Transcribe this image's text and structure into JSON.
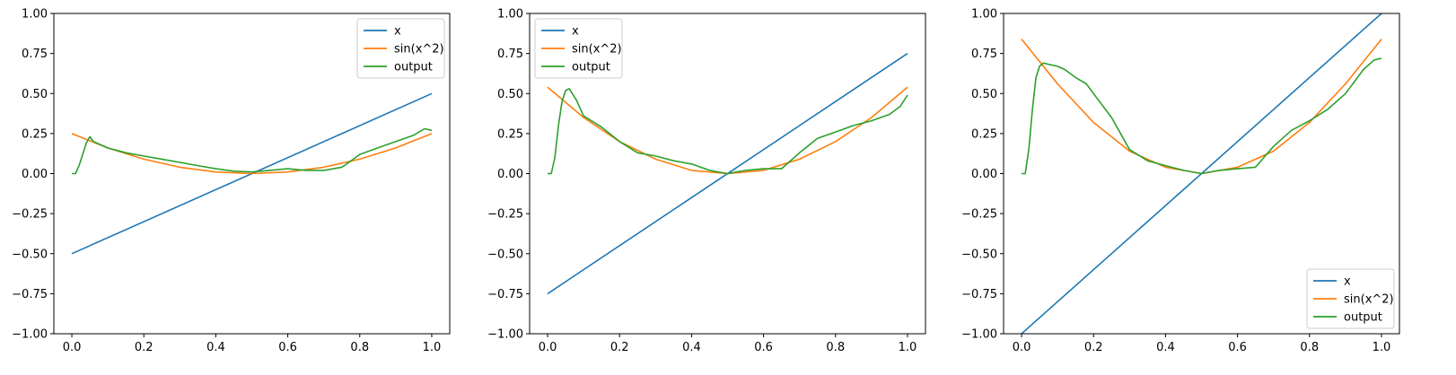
{
  "colors": {
    "x": "#1f77b4",
    "sin": "#ff7f0e",
    "output": "#2ca02c"
  },
  "chart_data": [
    {
      "type": "line",
      "xlim": [
        -0.05,
        1.05
      ],
      "ylim": [
        -1.0,
        1.0
      ],
      "xticks": [
        0.0,
        0.2,
        0.4,
        0.6,
        0.8,
        1.0
      ],
      "xtick_labels": [
        "0.0",
        "0.2",
        "0.4",
        "0.6",
        "0.8",
        "1.0"
      ],
      "yticks": [
        -1.0,
        -0.75,
        -0.5,
        -0.25,
        0.0,
        0.25,
        0.5,
        0.75,
        1.0
      ],
      "ytick_labels": [
        "−1.00",
        "−0.75",
        "−0.50",
        "−0.25",
        "0.00",
        "0.25",
        "0.50",
        "0.75",
        "1.00"
      ],
      "legend_position": "top-right",
      "series": [
        {
          "name": "x",
          "color_key": "x",
          "x": [
            0.0,
            1.0
          ],
          "y": [
            -0.5,
            0.5
          ]
        },
        {
          "name": "sin(x^2)",
          "color_key": "sin",
          "x": [
            0.0,
            0.1,
            0.2,
            0.3,
            0.4,
            0.5,
            0.6,
            0.7,
            0.8,
            0.9,
            1.0
          ],
          "y": [
            0.25,
            0.16,
            0.09,
            0.04,
            0.01,
            0.0,
            0.01,
            0.04,
            0.09,
            0.16,
            0.25
          ]
        },
        {
          "name": "output",
          "color_key": "output",
          "x": [
            0.0,
            0.01,
            0.02,
            0.03,
            0.04,
            0.05,
            0.06,
            0.08,
            0.1,
            0.15,
            0.2,
            0.25,
            0.3,
            0.35,
            0.4,
            0.45,
            0.5,
            0.55,
            0.6,
            0.65,
            0.7,
            0.75,
            0.77,
            0.8,
            0.85,
            0.9,
            0.95,
            0.98,
            1.0
          ],
          "y": [
            0.0,
            0.0,
            0.05,
            0.12,
            0.19,
            0.23,
            0.2,
            0.18,
            0.16,
            0.13,
            0.11,
            0.09,
            0.07,
            0.05,
            0.03,
            0.015,
            0.01,
            0.02,
            0.03,
            0.02,
            0.02,
            0.04,
            0.07,
            0.12,
            0.16,
            0.2,
            0.24,
            0.28,
            0.27
          ]
        }
      ]
    },
    {
      "type": "line",
      "xlim": [
        -0.05,
        1.05
      ],
      "ylim": [
        -1.0,
        1.0
      ],
      "xticks": [
        0.0,
        0.2,
        0.4,
        0.6,
        0.8,
        1.0
      ],
      "xtick_labels": [
        "0.0",
        "0.2",
        "0.4",
        "0.6",
        "0.8",
        "1.0"
      ],
      "yticks": [
        -1.0,
        -0.75,
        -0.5,
        -0.25,
        0.0,
        0.25,
        0.5,
        0.75,
        1.0
      ],
      "ytick_labels": [
        "−1.00",
        "−0.75",
        "−0.50",
        "−0.25",
        "0.00",
        "0.25",
        "0.50",
        "0.75",
        "1.00"
      ],
      "legend_position": "top-left",
      "series": [
        {
          "name": "x",
          "color_key": "x",
          "x": [
            0.0,
            1.0
          ],
          "y": [
            -0.75,
            0.75
          ]
        },
        {
          "name": "sin(x^2)",
          "color_key": "sin",
          "x": [
            0.0,
            0.1,
            0.2,
            0.3,
            0.4,
            0.5,
            0.6,
            0.7,
            0.8,
            0.9,
            1.0
          ],
          "y": [
            0.54,
            0.35,
            0.2,
            0.09,
            0.02,
            0.0,
            0.02,
            0.09,
            0.2,
            0.35,
            0.54
          ]
        },
        {
          "name": "output",
          "color_key": "output",
          "x": [
            0.0,
            0.01,
            0.02,
            0.03,
            0.04,
            0.05,
            0.06,
            0.08,
            0.1,
            0.15,
            0.2,
            0.25,
            0.3,
            0.35,
            0.4,
            0.45,
            0.5,
            0.55,
            0.6,
            0.65,
            0.7,
            0.75,
            0.8,
            0.85,
            0.9,
            0.95,
            0.98,
            1.0
          ],
          "y": [
            0.0,
            0.0,
            0.1,
            0.3,
            0.45,
            0.52,
            0.53,
            0.46,
            0.36,
            0.29,
            0.2,
            0.13,
            0.11,
            0.08,
            0.06,
            0.02,
            0.0,
            0.02,
            0.03,
            0.03,
            0.13,
            0.22,
            0.26,
            0.3,
            0.33,
            0.37,
            0.42,
            0.49
          ]
        }
      ]
    },
    {
      "type": "line",
      "xlim": [
        -0.05,
        1.05
      ],
      "ylim": [
        -1.0,
        1.0
      ],
      "xticks": [
        0.0,
        0.2,
        0.4,
        0.6,
        0.8,
        1.0
      ],
      "xtick_labels": [
        "0.0",
        "0.2",
        "0.4",
        "0.6",
        "0.8",
        "1.0"
      ],
      "yticks": [
        -1.0,
        -0.75,
        -0.5,
        -0.25,
        0.0,
        0.25,
        0.5,
        0.75,
        1.0
      ],
      "ytick_labels": [
        "−1.00",
        "−0.75",
        "−0.50",
        "−0.25",
        "0.00",
        "0.25",
        "0.50",
        "0.75",
        "1.00"
      ],
      "legend_position": "bottom-right",
      "series": [
        {
          "name": "x",
          "color_key": "x",
          "x": [
            0.0,
            1.0
          ],
          "y": [
            -1.0,
            1.0
          ]
        },
        {
          "name": "sin(x^2)",
          "color_key": "sin",
          "x": [
            0.0,
            0.1,
            0.2,
            0.3,
            0.4,
            0.5,
            0.6,
            0.7,
            0.8,
            0.9,
            1.0
          ],
          "y": [
            0.84,
            0.56,
            0.32,
            0.14,
            0.04,
            0.0,
            0.04,
            0.14,
            0.32,
            0.56,
            0.84
          ]
        },
        {
          "name": "output",
          "color_key": "output",
          "x": [
            0.0,
            0.01,
            0.02,
            0.03,
            0.04,
            0.05,
            0.06,
            0.08,
            0.1,
            0.12,
            0.15,
            0.18,
            0.2,
            0.25,
            0.3,
            0.35,
            0.4,
            0.45,
            0.5,
            0.55,
            0.6,
            0.65,
            0.7,
            0.75,
            0.8,
            0.85,
            0.9,
            0.95,
            0.98,
            1.0
          ],
          "y": [
            0.0,
            0.0,
            0.15,
            0.4,
            0.6,
            0.67,
            0.69,
            0.68,
            0.67,
            0.65,
            0.6,
            0.56,
            0.5,
            0.35,
            0.15,
            0.08,
            0.05,
            0.02,
            0.0,
            0.02,
            0.03,
            0.04,
            0.17,
            0.27,
            0.33,
            0.4,
            0.5,
            0.65,
            0.71,
            0.72
          ]
        }
      ]
    }
  ]
}
